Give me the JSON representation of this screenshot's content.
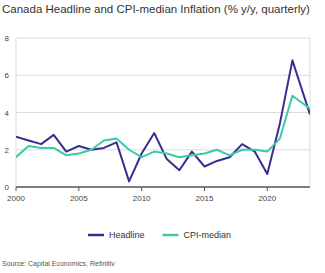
{
  "chart_data": {
    "type": "line",
    "title": "Canada Headline and CPI-median Inflation (% y/y, quarterly)",
    "source": "Source: Capital Economics, Refinitiv",
    "x": [
      2000,
      2001,
      2002,
      2003,
      2004,
      2005,
      2006,
      2007,
      2008,
      2009,
      2010,
      2011,
      2012,
      2013,
      2014,
      2015,
      2016,
      2017,
      2018,
      2019,
      2020,
      2021,
      2022,
      2023.4
    ],
    "series": [
      {
        "name": "Headline",
        "color": "#3b2d8f",
        "values": [
          2.7,
          2.5,
          2.3,
          2.8,
          1.9,
          2.2,
          2.0,
          2.1,
          2.4,
          0.3,
          1.8,
          2.9,
          1.5,
          0.9,
          1.9,
          1.1,
          1.4,
          1.6,
          2.3,
          1.9,
          0.7,
          3.4,
          6.8,
          3.9
        ]
      },
      {
        "name": "CPI-median",
        "color": "#3ccaa6",
        "values": [
          1.6,
          2.2,
          2.1,
          2.1,
          1.7,
          1.8,
          2.0,
          2.5,
          2.6,
          2.0,
          1.6,
          1.9,
          1.8,
          1.6,
          1.7,
          1.8,
          2.0,
          1.7,
          2.0,
          2.0,
          1.9,
          2.6,
          4.9,
          4.2
        ]
      }
    ],
    "xlim": [
      2000,
      2023.4
    ],
    "xticks": [
      2000,
      2005,
      2010,
      2015,
      2020
    ],
    "ylim": [
      0,
      8
    ],
    "yticks": [
      0,
      2,
      4,
      6,
      8
    ],
    "grid": true,
    "legend": "bottom"
  }
}
